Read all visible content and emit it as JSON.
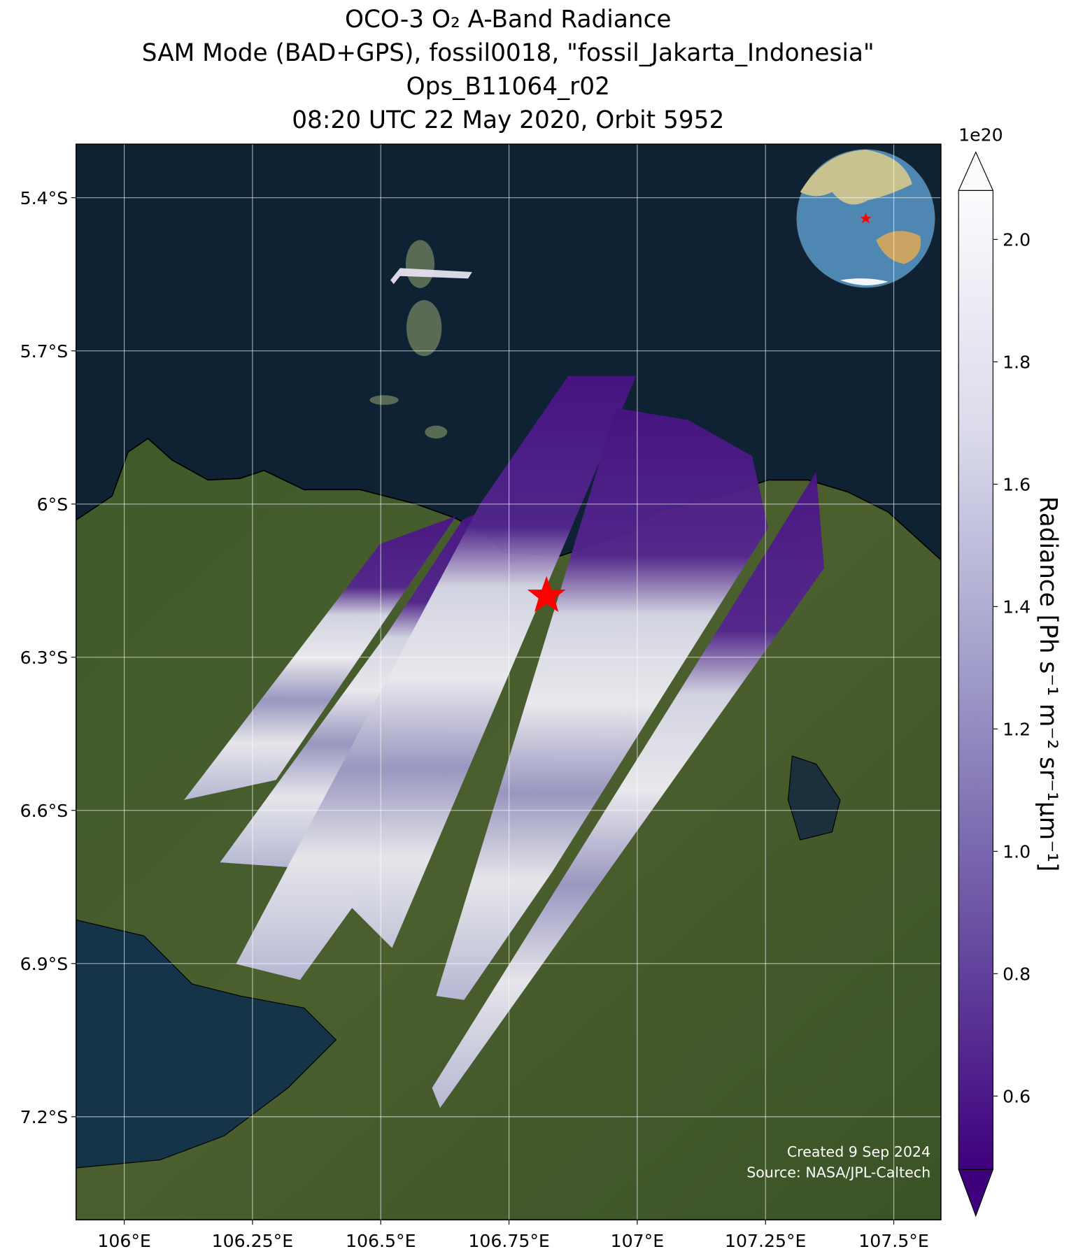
{
  "titles": [
    "OCO-3 O₂ A-Band Radiance",
    "SAM Mode (BAD+GPS), fossil0018, \"fossil_Jakarta_Indonesia\"",
    "Ops_B11064_r02",
    "08:20 UTC 22 May 2020, Orbit 5952"
  ],
  "map": {
    "xlim": [
      105.906,
      107.592
    ],
    "ylim": [
      -7.402,
      -5.295
    ],
    "grid": true,
    "xticks": [
      {
        "value": 106,
        "label": "106°E"
      },
      {
        "value": 106.25,
        "label": "106.25°E"
      },
      {
        "value": 106.5,
        "label": "106.5°E"
      },
      {
        "value": 106.75,
        "label": "106.75°E"
      },
      {
        "value": 107,
        "label": "107°E"
      },
      {
        "value": 107.25,
        "label": "107.25°E"
      },
      {
        "value": 107.5,
        "label": "107.5°E"
      }
    ],
    "yticks": [
      {
        "value": -5.4,
        "label": "5.4°S"
      },
      {
        "value": -5.7,
        "label": "5.7°S"
      },
      {
        "value": -6,
        "label": "6°S"
      },
      {
        "value": -6.3,
        "label": "6.3°S"
      },
      {
        "value": -6.6,
        "label": "6.6°S"
      },
      {
        "value": -6.9,
        "label": "6.9°S"
      },
      {
        "value": -7.2,
        "label": "7.2°S"
      }
    ]
  },
  "colorbar": {
    "label": "Radiance [Ph s⁻¹ m⁻² sr⁻¹μm⁻¹]",
    "offset_label": "1e20",
    "clim": [
      0.48,
      2.08
    ],
    "colors": [
      "#3f007d",
      "#6a51a3",
      "#9e9ac8",
      "#dadaeb",
      "#fcfbfd"
    ],
    "ticks": [
      0.6,
      0.8,
      {
        "value": 1,
        "label": "1.0"
      },
      1.2,
      1.4,
      1.6,
      1.8,
      {
        "value": 2,
        "label": "2.0"
      }
    ]
  },
  "credits": [
    "Created 9 Sep 2024",
    "Source: NASA/JPL-Caltech"
  ]
}
